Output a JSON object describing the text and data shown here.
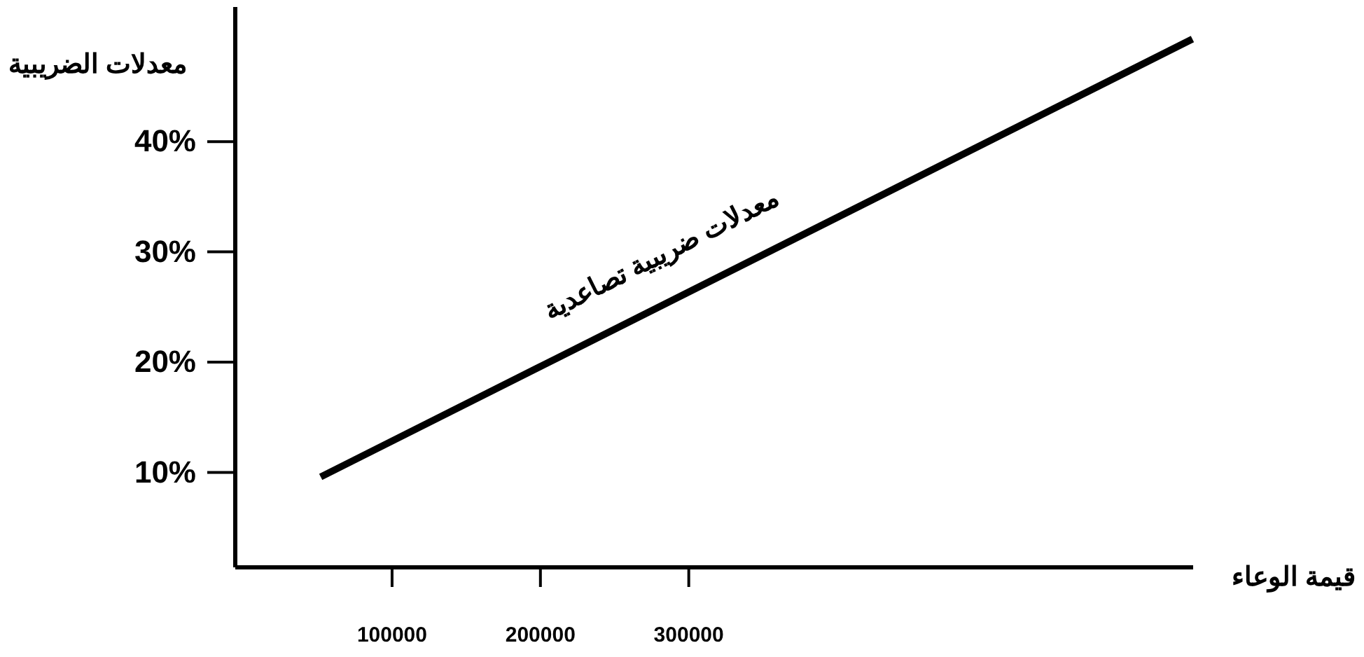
{
  "chart_data": {
    "type": "line",
    "xlabel": "قيمة الوعاء",
    "ylabel": "معدلات الضريبية",
    "xlim": [
      -5700,
      640000
    ],
    "xticks": [
      100000,
      200000,
      300000
    ],
    "ylim": [
      1.4,
      52.2
    ],
    "yticks": [
      {
        "value": 10,
        "label": "10%"
      },
      {
        "value": 20,
        "label": "20%"
      },
      {
        "value": 30,
        "label": "30%"
      },
      {
        "value": 40,
        "label": "40%"
      }
    ],
    "x": [
      51900,
      639500
    ],
    "series": [
      {
        "name": "معدلات ضريبية تصاعدية",
        "color": "#000000",
        "values": [
          9.6,
          49.3
        ]
      }
    ],
    "grid": false,
    "marker": "none",
    "line_style": "solid"
  }
}
